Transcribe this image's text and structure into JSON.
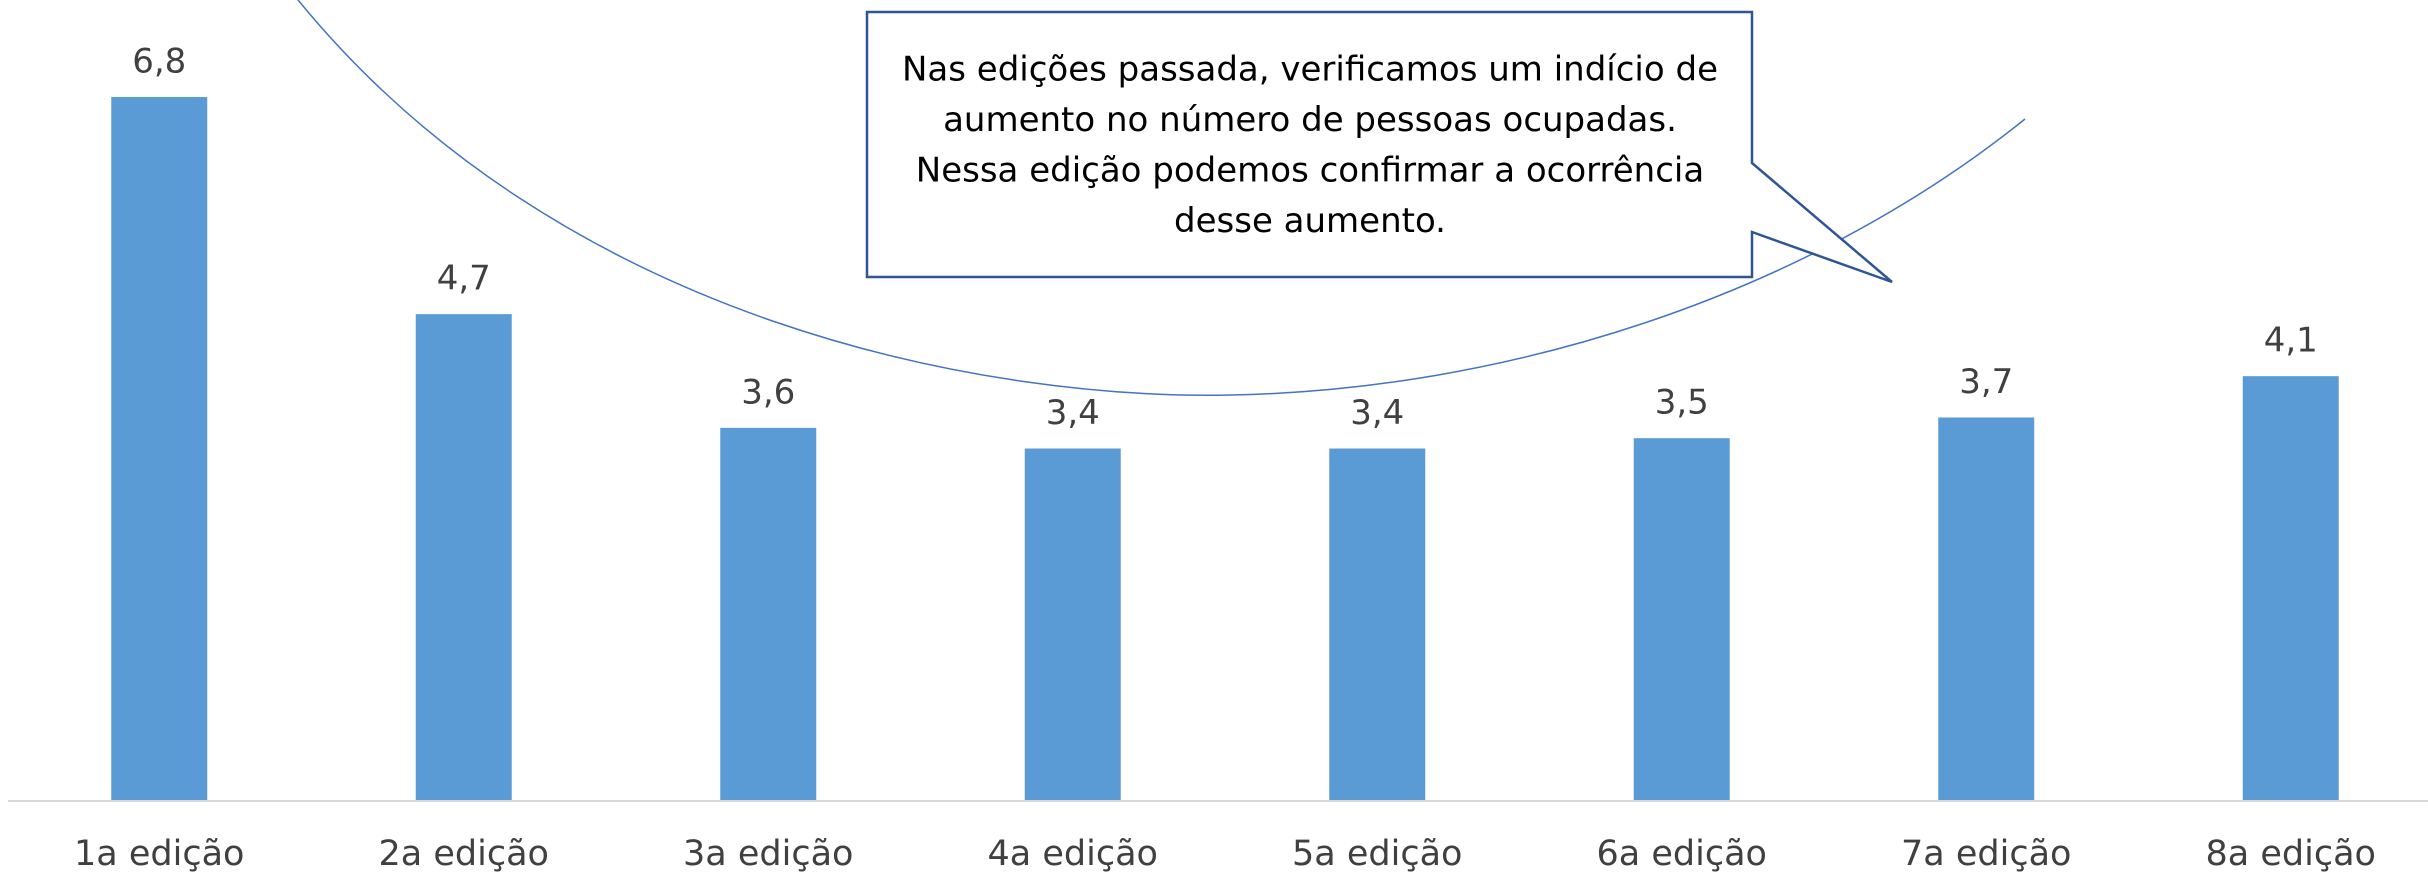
{
  "chart_data": {
    "type": "bar",
    "categories": [
      "1a edição",
      "2a edição",
      "3a edição",
      "4a edição",
      "5a edição",
      "6a edição",
      "7a edição",
      "8a edição"
    ],
    "values": [
      6.8,
      4.7,
      3.6,
      3.4,
      3.4,
      3.5,
      3.7,
      4.1
    ],
    "value_labels": [
      "6,8",
      "4,7",
      "3,6",
      "3,4",
      "3,4",
      "3,5",
      "3,7",
      "4,1"
    ],
    "color": "#5b9bd5",
    "ylim": [
      0,
      7.7
    ],
    "annotation": [
      "Nas edições passada, verificamos um indício de",
      "aumento no número de pessoas ocupadas.",
      "Nessa edição podemos confirmar a ocorrência",
      "desse aumento."
    ]
  }
}
